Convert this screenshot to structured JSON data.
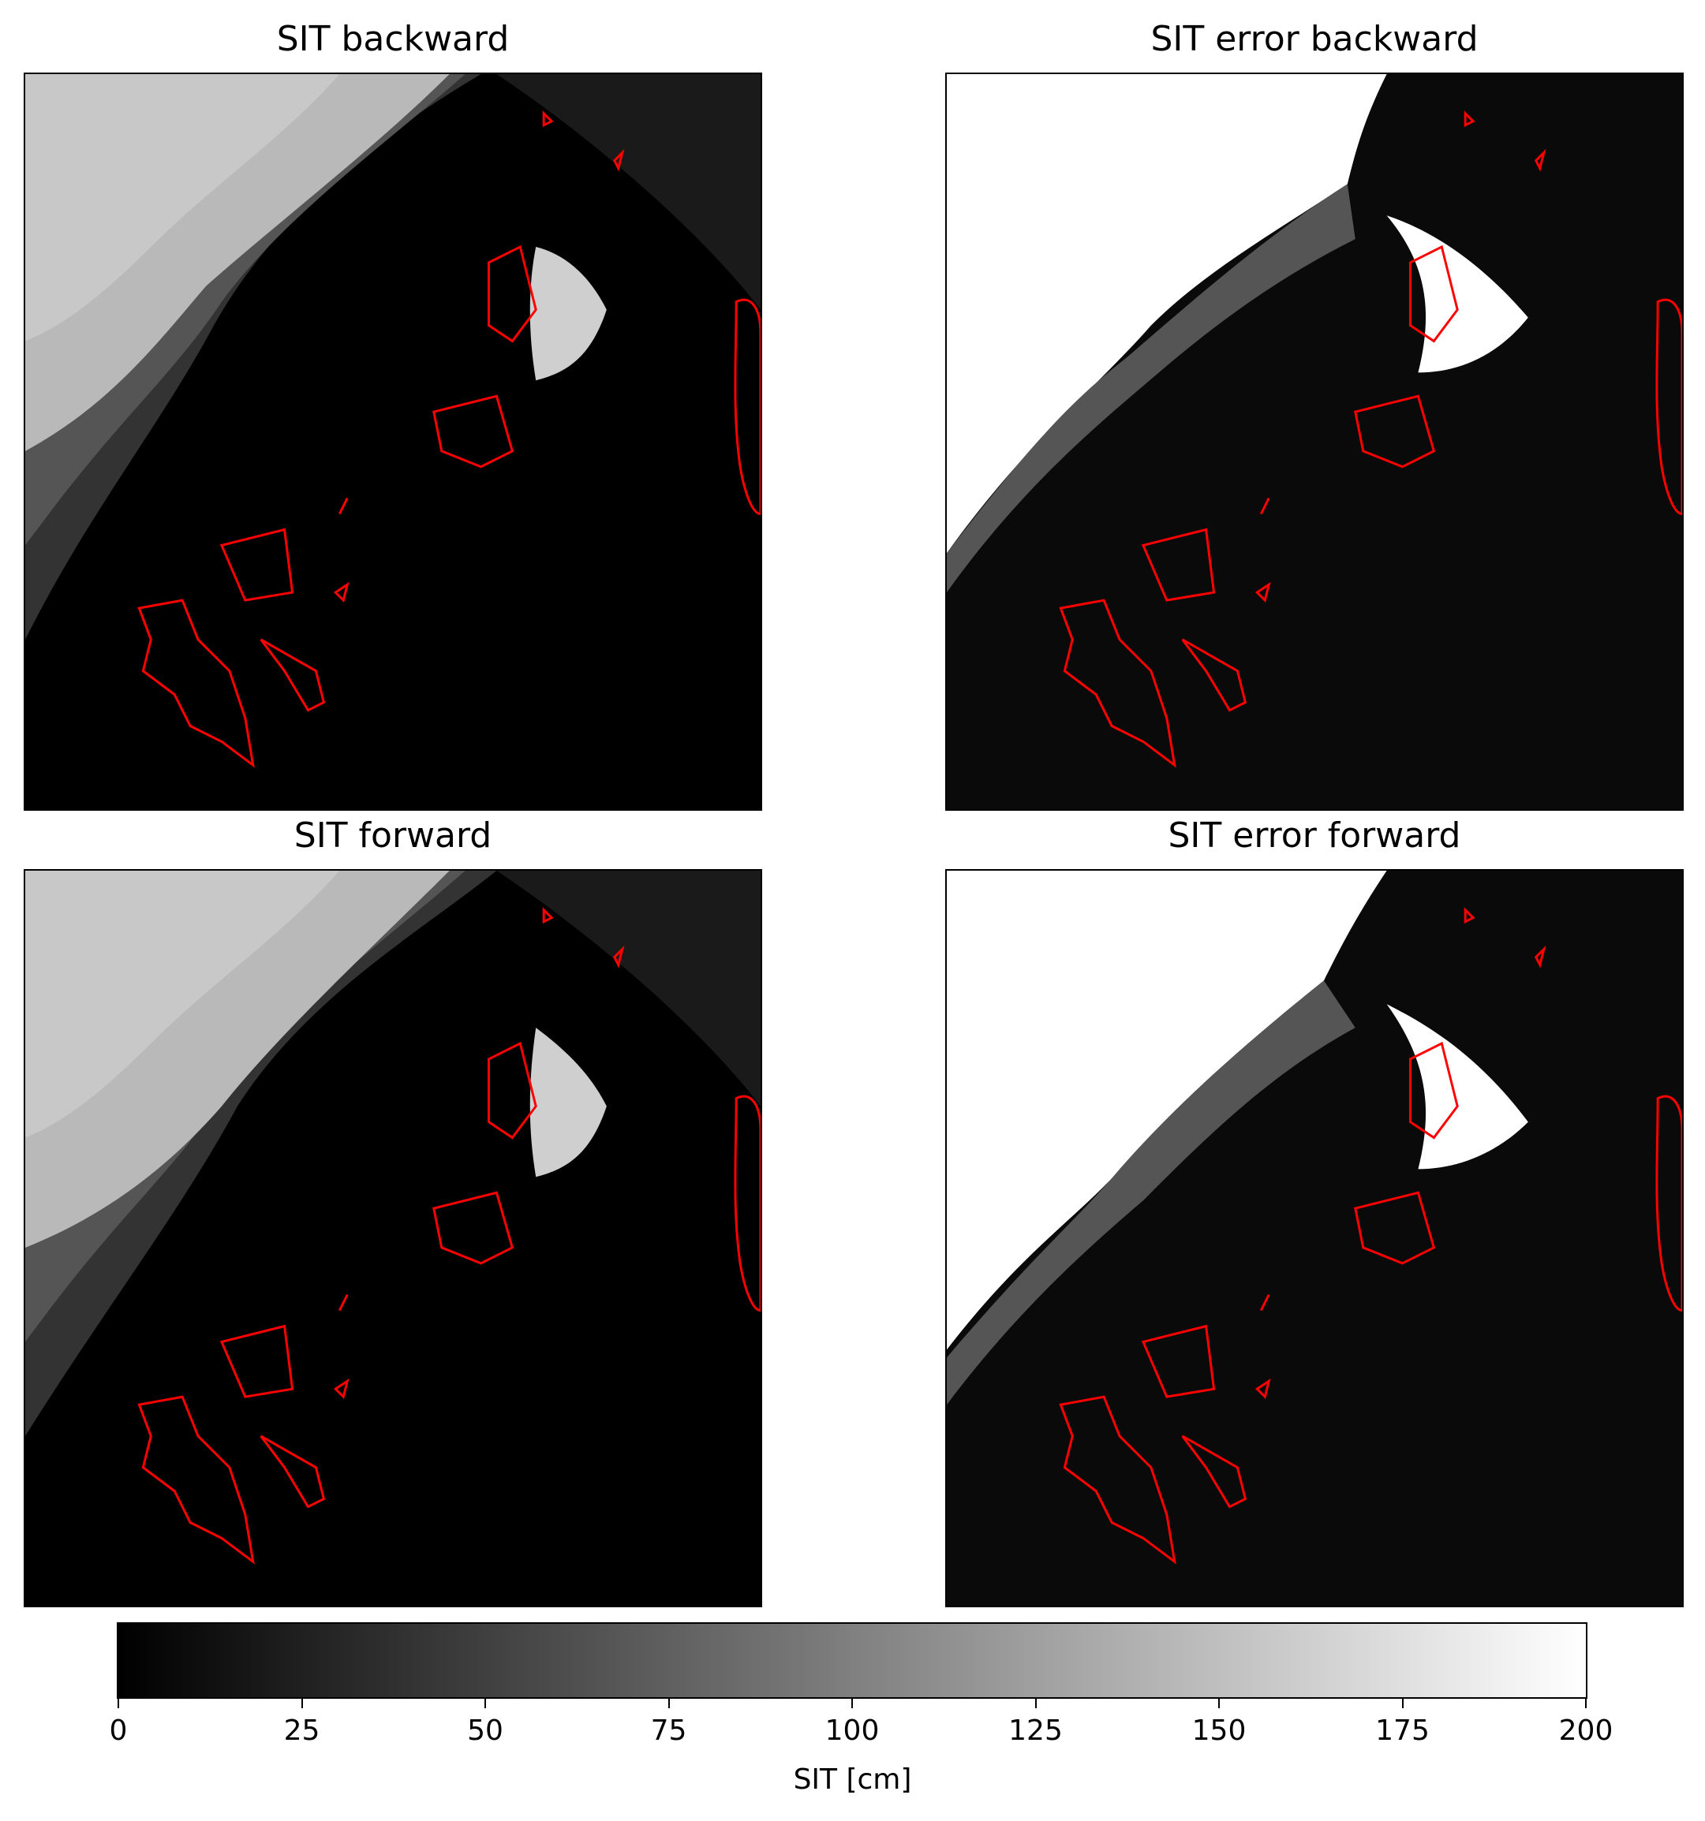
{
  "chart_data": [
    {
      "type": "heatmap",
      "title": "SIT backward",
      "colormap": "gray",
      "vmin": 0,
      "vmax": 200,
      "overlay": "red coastline contours (Svalbard, Franz Josef Land, Novaya Zemlya)"
    },
    {
      "type": "heatmap",
      "title": "SIT error backward",
      "colormap": "gray",
      "vmin": 0,
      "vmax": 200,
      "overlay": "red coastline contours (Svalbard, Franz Josef Land, Novaya Zemlya)"
    },
    {
      "type": "heatmap",
      "title": "SIT forward",
      "colormap": "gray",
      "vmin": 0,
      "vmax": 200,
      "overlay": "red coastline contours (Svalbard, Franz Josef Land, Novaya Zemlya)"
    },
    {
      "type": "heatmap",
      "title": "SIT error forward",
      "colormap": "gray",
      "vmin": 0,
      "vmax": 200,
      "overlay": "red coastline contours (Svalbard, Franz Josef Land, Novaya Zemlya)"
    }
  ],
  "colorbar": {
    "label": "SIT [cm]",
    "ticks": [
      "0",
      "25",
      "50",
      "75",
      "100",
      "125",
      "150",
      "175",
      "200"
    ],
    "min": 0,
    "max": 200,
    "colors": {
      "low": "#000000",
      "high": "#ffffff",
      "contour": "#ff0000"
    }
  }
}
